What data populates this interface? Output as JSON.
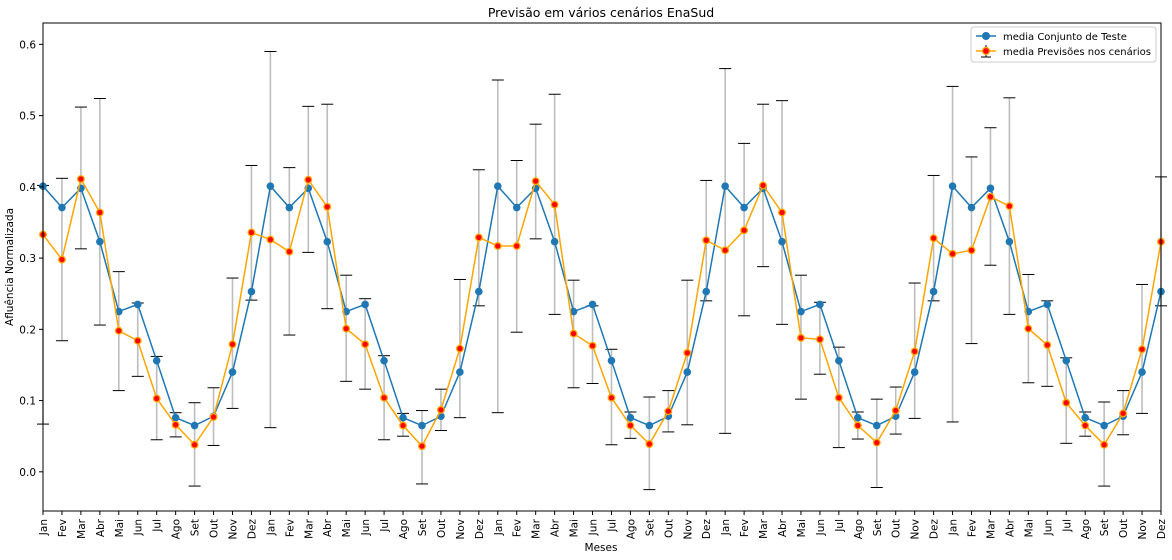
{
  "chart_data": {
    "type": "line",
    "title": "Previsão em vários cenários EnaSud",
    "xlabel": "Meses",
    "ylabel": "Afluência Normalizada",
    "ylim": [
      -0.055,
      0.63
    ],
    "yticks": [
      0.0,
      0.1,
      0.2,
      0.3,
      0.4,
      0.5,
      0.6
    ],
    "ytick_labels": [
      "0.0",
      "0.1",
      "0.2",
      "0.3",
      "0.4",
      "0.5",
      "0.6"
    ],
    "grid": false,
    "legend_position": "top-right",
    "categories": [
      "Jan",
      "Fev",
      "Mar",
      "Abr",
      "Mai",
      "Jun",
      "Jul",
      "Ago",
      "Set",
      "Out",
      "Nov",
      "Dez",
      "Jan",
      "Fev",
      "Mar",
      "Abr",
      "Mai",
      "Jun",
      "Jul",
      "Ago",
      "Set",
      "Out",
      "Nov",
      "Dez",
      "Jan",
      "Fev",
      "Mar",
      "Abr",
      "Mai",
      "Jun",
      "Jul",
      "Ago",
      "Set",
      "Out",
      "Nov",
      "Dez",
      "Jan",
      "Fev",
      "Mar",
      "Abr",
      "Mai",
      "Jun",
      "Jul",
      "Ago",
      "Set",
      "Out",
      "Nov",
      "Dez",
      "Jan",
      "Fev",
      "Mar",
      "Abr",
      "Mai",
      "Jun",
      "Jul",
      "Ago",
      "Set",
      "Out",
      "Nov",
      "Dez"
    ],
    "series": [
      {
        "name": "media Conjunto de Teste",
        "color": "#1f77b4",
        "values": [
          0.401,
          0.371,
          0.398,
          0.323,
          0.225,
          0.235,
          0.156,
          0.076,
          0.065,
          0.078,
          0.14,
          0.253,
          0.401,
          0.371,
          0.398,
          0.323,
          0.225,
          0.235,
          0.156,
          0.076,
          0.065,
          0.078,
          0.14,
          0.253,
          0.401,
          0.371,
          0.398,
          0.323,
          0.225,
          0.235,
          0.156,
          0.076,
          0.065,
          0.078,
          0.14,
          0.253,
          0.401,
          0.371,
          0.398,
          0.323,
          0.225,
          0.235,
          0.156,
          0.076,
          0.065,
          0.078,
          0.14,
          0.253,
          0.401,
          0.371,
          0.398,
          0.323,
          0.225,
          0.235,
          0.156,
          0.076,
          0.065,
          0.078,
          0.14,
          0.253
        ]
      },
      {
        "name": "media Previsões nos cenários",
        "color": "#ffa500",
        "marker_color": "#ff0000",
        "values": [
          0.333,
          0.298,
          0.411,
          0.364,
          0.198,
          0.184,
          0.103,
          0.066,
          0.038,
          0.077,
          0.179,
          0.336,
          0.326,
          0.309,
          0.41,
          0.372,
          0.201,
          0.179,
          0.104,
          0.065,
          0.036,
          0.087,
          0.173,
          0.329,
          0.317,
          0.317,
          0.408,
          0.375,
          0.194,
          0.177,
          0.104,
          0.065,
          0.039,
          0.085,
          0.167,
          0.325,
          0.311,
          0.339,
          0.402,
          0.364,
          0.188,
          0.186,
          0.104,
          0.065,
          0.041,
          0.086,
          0.169,
          0.328,
          0.306,
          0.311,
          0.386,
          0.373,
          0.201,
          0.178,
          0.097,
          0.065,
          0.038,
          0.082,
          0.172,
          0.323
        ],
        "error_low": [
          0.067,
          0.184,
          0.313,
          0.206,
          0.114,
          0.134,
          0.045,
          0.049,
          -0.02,
          0.037,
          0.089,
          0.241,
          0.062,
          0.192,
          0.308,
          0.229,
          0.127,
          0.116,
          0.045,
          0.05,
          -0.017,
          0.058,
          0.076,
          0.233,
          0.083,
          0.196,
          0.327,
          0.221,
          0.118,
          0.124,
          0.038,
          0.047,
          -0.025,
          0.056,
          0.066,
          0.24,
          0.054,
          0.219,
          0.288,
          0.207,
          0.102,
          0.137,
          0.034,
          0.046,
          -0.022,
          0.053,
          0.075,
          0.24,
          0.07,
          0.18,
          0.29,
          0.221,
          0.125,
          0.12,
          0.04,
          0.05,
          -0.02,
          0.052,
          0.082,
          0.233
        ],
        "error_high": [
          0.402,
          0.412,
          0.512,
          0.524,
          0.281,
          0.237,
          0.162,
          0.083,
          0.097,
          0.118,
          0.272,
          0.43,
          0.59,
          0.427,
          0.513,
          0.516,
          0.276,
          0.243,
          0.163,
          0.082,
          0.086,
          0.116,
          0.27,
          0.424,
          0.55,
          0.437,
          0.488,
          0.53,
          0.269,
          0.233,
          0.172,
          0.084,
          0.105,
          0.114,
          0.269,
          0.409,
          0.566,
          0.461,
          0.516,
          0.521,
          0.276,
          0.238,
          0.175,
          0.084,
          0.102,
          0.119,
          0.265,
          0.416,
          0.541,
          0.442,
          0.483,
          0.525,
          0.277,
          0.24,
          0.16,
          0.084,
          0.098,
          0.114,
          0.263,
          0.414
        ]
      }
    ]
  }
}
